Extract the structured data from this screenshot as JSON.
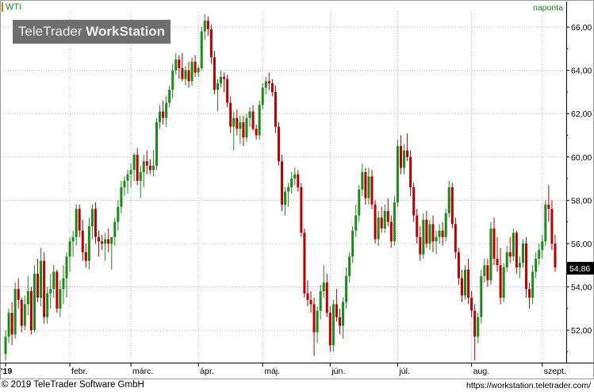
{
  "header": {
    "symbol": "WTI",
    "interval": "naponta",
    "watermark": {
      "part1": "TeleTrader ",
      "part2": "WorkStation"
    }
  },
  "footer": {
    "copyright": "© 2019 TeleTrader Software GmbH",
    "url": "https://workstation.teletrader.com/"
  },
  "colors": {
    "up": "#1a8a1a",
    "down": "#b80000",
    "grid": "#b8b8b8",
    "watermark_bg": "#6e6e6e",
    "header_accent": "#d08000"
  },
  "chart_data": {
    "type": "candlestick",
    "title": "WTI",
    "interval": "naponta",
    "ylim": [
      50.5,
      66.7
    ],
    "y_ticks": [
      "52,00",
      "54,00",
      "56,00",
      "58,00",
      "60,00",
      "62,00",
      "64,00",
      "66,00"
    ],
    "x_labels": [
      "'19",
      "febr.",
      "márc.",
      "ápr.",
      "máj.",
      "jún.",
      "júl.",
      "aug.",
      "szept."
    ],
    "last_value": "54,86",
    "ohlc": [
      [
        50.9,
        52.0,
        50.6,
        51.7
      ],
      [
        51.7,
        53.0,
        51.4,
        52.8
      ],
      [
        52.8,
        53.3,
        51.3,
        51.8
      ],
      [
        51.8,
        54.2,
        51.6,
        53.9
      ],
      [
        53.9,
        54.4,
        53.0,
        53.4
      ],
      [
        53.4,
        53.5,
        51.9,
        52.2
      ],
      [
        52.2,
        53.6,
        52.0,
        53.2
      ],
      [
        53.2,
        54.5,
        52.7,
        53.8
      ],
      [
        53.8,
        54.0,
        51.8,
        52.0
      ],
      [
        52.0,
        55.0,
        51.9,
        54.6
      ],
      [
        54.6,
        55.3,
        53.3,
        53.5
      ],
      [
        53.5,
        55.8,
        53.1,
        55.2
      ],
      [
        55.2,
        55.6,
        52.3,
        52.6
      ],
      [
        52.6,
        54.0,
        52.3,
        53.7
      ],
      [
        53.7,
        54.6,
        53.0,
        53.9
      ],
      [
        53.9,
        55.0,
        53.5,
        54.7
      ],
      [
        54.7,
        54.8,
        52.8,
        53.0
      ],
      [
        53.0,
        54.3,
        52.6,
        53.9
      ],
      [
        53.9,
        55.0,
        53.2,
        54.4
      ],
      [
        54.4,
        55.6,
        53.5,
        55.4
      ],
      [
        55.4,
        56.3,
        54.7,
        56.1
      ],
      [
        56.1,
        56.6,
        55.4,
        56.3
      ],
      [
        56.3,
        57.8,
        55.9,
        57.6
      ],
      [
        57.6,
        57.8,
        56.3,
        56.6
      ],
      [
        56.6,
        57.1,
        55.2,
        55.6
      ],
      [
        55.6,
        56.0,
        54.9,
        55.2
      ],
      [
        55.2,
        57.2,
        54.8,
        56.8
      ],
      [
        56.8,
        57.8,
        56.2,
        57.6
      ],
      [
        57.6,
        57.9,
        56.0,
        56.3
      ],
      [
        56.3,
        56.6,
        55.4,
        56.1
      ],
      [
        56.1,
        56.4,
        55.7,
        56.0
      ],
      [
        56.0,
        56.5,
        55.2,
        56.2
      ],
      [
        56.2,
        56.7,
        55.6,
        56.0
      ],
      [
        56.0,
        56.3,
        54.8,
        56.3
      ],
      [
        56.3,
        57.2,
        55.9,
        57.0
      ],
      [
        57.0,
        58.0,
        56.6,
        57.7
      ],
      [
        57.7,
        58.9,
        57.4,
        58.6
      ],
      [
        58.6,
        59.1,
        58.2,
        58.9
      ],
      [
        58.9,
        59.4,
        58.3,
        59.2
      ],
      [
        59.2,
        59.7,
        58.6,
        59.4
      ],
      [
        59.4,
        60.2,
        58.9,
        60.1
      ],
      [
        60.1,
        60.4,
        58.7,
        58.9
      ],
      [
        58.9,
        59.6,
        58.1,
        59.3
      ],
      [
        59.3,
        60.1,
        58.6,
        59.8
      ],
      [
        59.8,
        60.3,
        59.2,
        59.6
      ],
      [
        59.6,
        59.9,
        59.2,
        59.4
      ],
      [
        59.4,
        60.3,
        59.1,
        59.6
      ],
      [
        59.6,
        61.8,
        59.4,
        61.6
      ],
      [
        61.6,
        62.4,
        61.3,
        62.1
      ],
      [
        62.1,
        62.6,
        61.5,
        61.8
      ],
      [
        61.8,
        62.8,
        61.4,
        62.5
      ],
      [
        62.5,
        63.3,
        62.3,
        63.1
      ],
      [
        63.1,
        64.3,
        62.7,
        64.0
      ],
      [
        64.0,
        64.8,
        63.8,
        64.5
      ],
      [
        64.5,
        64.7,
        63.6,
        64.1
      ],
      [
        64.1,
        64.8,
        63.5,
        63.6
      ],
      [
        63.6,
        64.2,
        63.3,
        64.0
      ],
      [
        64.0,
        64.4,
        63.2,
        63.5
      ],
      [
        63.5,
        64.6,
        63.3,
        64.4
      ],
      [
        64.4,
        64.7,
        63.7,
        63.9
      ],
      [
        63.9,
        64.2,
        63.7,
        64.1
      ],
      [
        64.1,
        66.0,
        64.0,
        65.8
      ],
      [
        65.8,
        66.6,
        65.4,
        66.3
      ],
      [
        66.3,
        66.5,
        65.6,
        65.9
      ],
      [
        65.9,
        66.1,
        64.3,
        64.6
      ],
      [
        64.6,
        64.9,
        62.9,
        63.1
      ],
      [
        63.1,
        63.6,
        62.1,
        63.4
      ],
      [
        63.4,
        64.0,
        63.2,
        63.7
      ],
      [
        63.7,
        63.9,
        63.0,
        63.6
      ],
      [
        63.6,
        63.8,
        62.3,
        62.5
      ],
      [
        62.5,
        62.8,
        61.1,
        61.4
      ],
      [
        61.4,
        62.1,
        60.3,
        61.8
      ],
      [
        61.8,
        62.2,
        61.0,
        61.3
      ],
      [
        61.3,
        61.9,
        60.6,
        61.6
      ],
      [
        61.6,
        61.9,
        60.5,
        60.9
      ],
      [
        60.9,
        62.0,
        60.7,
        61.8
      ],
      [
        61.8,
        62.3,
        61.4,
        62.1
      ],
      [
        62.1,
        62.4,
        61.2,
        61.3
      ],
      [
        61.3,
        61.5,
        60.8,
        61.0
      ],
      [
        61.0,
        62.6,
        60.8,
        62.4
      ],
      [
        62.4,
        63.4,
        62.2,
        63.2
      ],
      [
        63.2,
        63.7,
        62.9,
        63.5
      ],
      [
        63.5,
        63.9,
        63.1,
        63.4
      ],
      [
        63.4,
        63.6,
        62.8,
        63.0
      ],
      [
        63.0,
        63.3,
        61.1,
        61.4
      ],
      [
        61.4,
        61.6,
        59.6,
        59.8
      ],
      [
        59.8,
        60.1,
        57.5,
        57.8
      ],
      [
        57.8,
        58.6,
        57.3,
        58.4
      ],
      [
        58.4,
        58.8,
        57.7,
        58.6
      ],
      [
        58.6,
        59.3,
        58.3,
        59.0
      ],
      [
        59.0,
        59.5,
        58.7,
        59.2
      ],
      [
        59.2,
        59.4,
        58.4,
        58.6
      ],
      [
        58.6,
        58.8,
        56.3,
        56.5
      ],
      [
        56.5,
        56.7,
        53.5,
        53.7
      ],
      [
        53.7,
        54.3,
        53.1,
        53.4
      ],
      [
        53.4,
        53.8,
        52.8,
        53.2
      ],
      [
        53.2,
        53.5,
        50.8,
        51.9
      ],
      [
        51.9,
        53.1,
        51.4,
        52.9
      ],
      [
        52.9,
        54.1,
        52.5,
        53.8
      ],
      [
        53.8,
        55.0,
        53.5,
        54.2
      ],
      [
        54.2,
        54.6,
        52.6,
        52.8
      ],
      [
        52.8,
        53.1,
        51.0,
        51.3
      ],
      [
        51.3,
        53.4,
        51.0,
        53.2
      ],
      [
        53.2,
        53.9,
        52.4,
        52.6
      ],
      [
        52.6,
        53.0,
        51.8,
        52.2
      ],
      [
        52.2,
        53.5,
        51.6,
        53.3
      ],
      [
        53.3,
        54.9,
        53.0,
        54.5
      ],
      [
        54.5,
        55.6,
        54.2,
        55.4
      ],
      [
        55.4,
        56.8,
        55.1,
        56.6
      ],
      [
        56.6,
        57.8,
        56.3,
        57.3
      ],
      [
        57.3,
        58.7,
        57.0,
        58.5
      ],
      [
        58.5,
        59.7,
        58.2,
        59.3
      ],
      [
        59.3,
        59.5,
        57.8,
        58.1
      ],
      [
        58.1,
        59.5,
        57.8,
        59.1
      ],
      [
        59.1,
        59.4,
        57.6,
        57.8
      ],
      [
        57.8,
        58.0,
        56.0,
        56.2
      ],
      [
        56.2,
        57.5,
        55.9,
        57.2
      ],
      [
        57.2,
        57.7,
        56.5,
        56.7
      ],
      [
        56.7,
        57.8,
        56.5,
        57.5
      ],
      [
        57.5,
        58.1,
        56.8,
        57.0
      ],
      [
        57.0,
        57.3,
        55.8,
        56.1
      ],
      [
        56.1,
        58.2,
        55.9,
        57.9
      ],
      [
        57.9,
        60.8,
        57.7,
        60.5
      ],
      [
        60.5,
        61.0,
        59.2,
        59.5
      ],
      [
        59.5,
        60.6,
        59.2,
        60.3
      ],
      [
        60.3,
        61.1,
        59.8,
        60.0
      ],
      [
        60.0,
        60.3,
        58.2,
        58.6
      ],
      [
        58.6,
        58.8,
        57.0,
        57.3
      ],
      [
        57.3,
        57.6,
        56.0,
        56.3
      ],
      [
        56.3,
        56.8,
        55.2,
        55.5
      ],
      [
        55.5,
        57.4,
        55.3,
        57.1
      ],
      [
        57.1,
        57.5,
        55.8,
        56.0
      ],
      [
        56.0,
        57.1,
        55.7,
        56.9
      ],
      [
        56.9,
        57.3,
        55.6,
        56.1
      ],
      [
        56.1,
        56.6,
        55.5,
        56.3
      ],
      [
        56.3,
        56.9,
        56.0,
        56.6
      ],
      [
        56.6,
        57.0,
        55.9,
        56.3
      ],
      [
        56.3,
        57.6,
        56.1,
        57.4
      ],
      [
        57.4,
        58.9,
        57.2,
        58.6
      ],
      [
        58.6,
        58.8,
        56.7,
        56.9
      ],
      [
        56.9,
        57.2,
        55.3,
        55.6
      ],
      [
        55.6,
        55.8,
        54.1,
        54.4
      ],
      [
        54.4,
        54.8,
        53.3,
        53.6
      ],
      [
        53.6,
        55.0,
        53.4,
        54.8
      ],
      [
        54.8,
        55.3,
        53.2,
        53.5
      ],
      [
        53.5,
        53.8,
        52.6,
        52.9
      ],
      [
        52.9,
        53.2,
        50.6,
        51.7
      ],
      [
        51.7,
        52.8,
        51.4,
        52.6
      ],
      [
        52.6,
        54.8,
        52.3,
        54.5
      ],
      [
        54.5,
        55.3,
        54.2,
        55.0
      ],
      [
        55.0,
        55.3,
        54.0,
        54.3
      ],
      [
        54.3,
        57.0,
        54.1,
        56.7
      ],
      [
        56.7,
        57.2,
        55.0,
        55.3
      ],
      [
        55.3,
        56.3,
        54.7,
        55.0
      ],
      [
        55.0,
        55.8,
        53.2,
        53.5
      ],
      [
        53.5,
        55.1,
        53.3,
        54.9
      ],
      [
        54.9,
        55.9,
        54.7,
        55.6
      ],
      [
        55.6,
        56.3,
        55.1,
        55.4
      ],
      [
        55.4,
        56.7,
        55.2,
        56.5
      ],
      [
        56.5,
        56.6,
        54.6,
        54.9
      ],
      [
        54.9,
        55.4,
        54.4,
        55.1
      ],
      [
        55.1,
        56.2,
        54.9,
        56.0
      ],
      [
        56.0,
        56.3,
        53.5,
        53.9
      ],
      [
        53.9,
        54.2,
        53.0,
        53.5
      ],
      [
        53.5,
        55.0,
        53.2,
        54.7
      ],
      [
        54.7,
        55.6,
        54.4,
        55.3
      ],
      [
        55.3,
        56.0,
        55.0,
        55.7
      ],
      [
        55.7,
        56.4,
        55.3,
        56.1
      ],
      [
        56.1,
        58.0,
        55.9,
        57.8
      ],
      [
        57.8,
        58.7,
        57.0,
        57.6
      ],
      [
        57.6,
        58.0,
        55.7,
        56.0
      ],
      [
        56.0,
        56.4,
        54.7,
        54.9
      ]
    ]
  }
}
